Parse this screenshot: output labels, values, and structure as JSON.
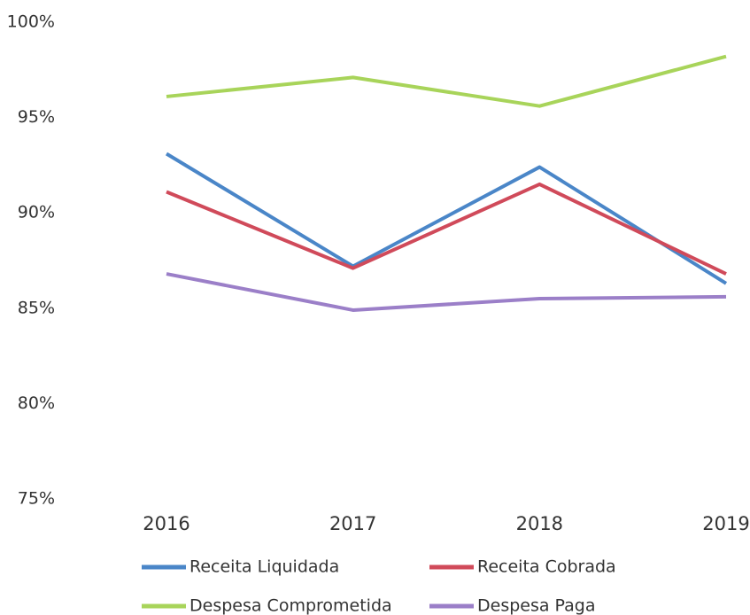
{
  "chart_data": {
    "type": "line",
    "categories": [
      "2016",
      "2017",
      "2018",
      "2019"
    ],
    "series": [
      {
        "name": "Receita Liquidada",
        "color": "#4a86c8",
        "values": [
          93.1,
          87.2,
          92.4,
          86.3
        ]
      },
      {
        "name": "Receita Cobrada",
        "color": "#d04a5a",
        "values": [
          91.1,
          87.1,
          91.5,
          86.8
        ]
      },
      {
        "name": "Despesa Comprometida",
        "color": "#a8d45a",
        "values": [
          96.1,
          97.1,
          95.6,
          98.2
        ]
      },
      {
        "name": "Despesa Paga",
        "color": "#9b7fc8",
        "values": [
          86.8,
          84.9,
          85.5,
          85.6
        ]
      }
    ],
    "ylim": [
      75,
      100
    ],
    "yticks": [
      {
        "value": 75,
        "label": "75%"
      },
      {
        "value": 80,
        "label": "80%"
      },
      {
        "value": 85,
        "label": "85%"
      },
      {
        "value": 90,
        "label": "90%"
      },
      {
        "value": 95,
        "label": "95%"
      },
      {
        "value": 100,
        "label": "100%"
      }
    ],
    "grid": false,
    "legend": "bottom"
  }
}
